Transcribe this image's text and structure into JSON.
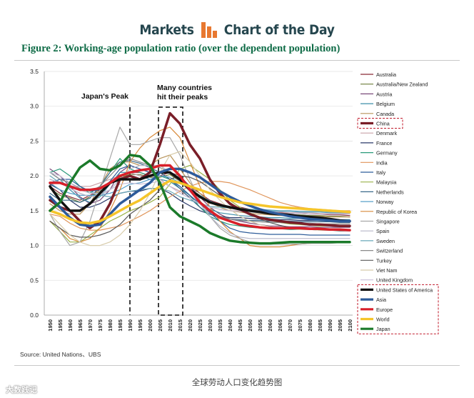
{
  "header": {
    "left_word": "Markets",
    "right_word": "Chart of the Day"
  },
  "colors": {
    "brand": "#e87830",
    "header_text": "#25464e",
    "figure_title": "#0e6b46",
    "highlight_box": "#c0182a"
  },
  "figure_title": "Figure 2:  Working-age population ratio (over the dependent population)",
  "source": "Source: United Nations、UBS",
  "caption": "全球劳动人口变化趋势图",
  "watermark": "大数践记",
  "chart_data": {
    "type": "line",
    "title": "Working-age population ratio (over the dependent population)",
    "xlabel": "",
    "ylabel": "",
    "ylim": [
      0.0,
      3.5
    ],
    "yticks": [
      "0.0",
      "0.5",
      "1.0",
      "1.5",
      "2.0",
      "2.5",
      "3.0",
      "3.5"
    ],
    "categories": [
      "1950",
      "1955",
      "1960",
      "1965",
      "1970",
      "1975",
      "1980",
      "1985",
      "1990",
      "1995",
      "2000",
      "2005",
      "2010",
      "2015",
      "2020",
      "2025",
      "2030",
      "2035",
      "2040",
      "2045",
      "2050",
      "2055",
      "2060",
      "2065",
      "2070",
      "2075",
      "2080",
      "2085",
      "2090",
      "2095",
      "2100"
    ],
    "annotations": [
      {
        "text": "Japan's Peak",
        "x": "1990"
      },
      {
        "text": "Many countries hit their peaks",
        "x_range": [
          "2005",
          "2015"
        ]
      }
    ],
    "highlight_groups": [
      [
        "China"
      ],
      [
        "United States of America",
        "Asia",
        "Europe",
        "World",
        "Japan"
      ]
    ],
    "series": [
      {
        "name": "Australia",
        "color": "#8a2a35",
        "width": 1.2,
        "values": [
          1.85,
          1.75,
          1.7,
          1.65,
          1.72,
          1.8,
          1.9,
          2.0,
          2.05,
          2.05,
          2.0,
          2.0,
          2.05,
          1.95,
          1.85,
          1.75,
          1.65,
          1.6,
          1.55,
          1.55,
          1.52,
          1.5,
          1.48,
          1.47,
          1.46,
          1.46,
          1.45,
          1.45,
          1.44,
          1.44,
          1.43
        ]
      },
      {
        "name": "Australia/New Zealand",
        "color": "#6e7d3a",
        "width": 1.2,
        "values": [
          1.82,
          1.72,
          1.68,
          1.62,
          1.7,
          1.78,
          1.88,
          1.98,
          2.02,
          2.02,
          1.98,
          1.98,
          2.02,
          1.92,
          1.82,
          1.72,
          1.63,
          1.58,
          1.53,
          1.53,
          1.5,
          1.48,
          1.46,
          1.45,
          1.44,
          1.44,
          1.43,
          1.43,
          1.42,
          1.42,
          1.41
        ]
      },
      {
        "name": "Austria",
        "color": "#7a4a7a",
        "width": 1.2,
        "values": [
          2.1,
          2.0,
          1.85,
          1.7,
          1.6,
          1.65,
          1.8,
          2.05,
          2.15,
          2.1,
          2.05,
          2.05,
          2.05,
          2.0,
          1.85,
          1.7,
          1.55,
          1.45,
          1.38,
          1.35,
          1.32,
          1.3,
          1.28,
          1.28,
          1.27,
          1.27,
          1.27,
          1.26,
          1.26,
          1.26,
          1.26
        ]
      },
      {
        "name": "Belgium",
        "color": "#3d8ea8",
        "width": 1.2,
        "values": [
          2.05,
          1.95,
          1.8,
          1.68,
          1.62,
          1.7,
          1.88,
          2.05,
          2.05,
          2.0,
          1.95,
          1.95,
          1.92,
          1.82,
          1.72,
          1.6,
          1.52,
          1.47,
          1.45,
          1.43,
          1.42,
          1.41,
          1.4,
          1.4,
          1.39,
          1.39,
          1.38,
          1.38,
          1.38,
          1.37,
          1.37
        ]
      },
      {
        "name": "Canada",
        "color": "#b8945a",
        "width": 1.2,
        "values": [
          1.6,
          1.5,
          1.45,
          1.45,
          1.6,
          1.85,
          2.1,
          2.2,
          2.2,
          2.15,
          2.15,
          2.25,
          2.3,
          2.1,
          1.9,
          1.75,
          1.62,
          1.55,
          1.5,
          1.48,
          1.46,
          1.45,
          1.44,
          1.43,
          1.43,
          1.42,
          1.42,
          1.42,
          1.41,
          1.41,
          1.41
        ]
      },
      {
        "name": "China",
        "color": "#7a1e28",
        "width": 3.5,
        "values": [
          1.65,
          1.55,
          1.5,
          1.35,
          1.25,
          1.35,
          1.6,
          1.95,
          2.0,
          1.95,
          2.05,
          2.45,
          2.9,
          2.75,
          2.45,
          2.25,
          1.95,
          1.75,
          1.6,
          1.52,
          1.45,
          1.4,
          1.37,
          1.35,
          1.33,
          1.32,
          1.3,
          1.3,
          1.29,
          1.28,
          1.28
        ]
      },
      {
        "name": "Denmark",
        "color": "#c9a2a8",
        "width": 1.2,
        "values": [
          1.95,
          1.9,
          1.85,
          1.85,
          1.85,
          1.9,
          1.95,
          2.0,
          2.05,
          2.0,
          2.0,
          1.95,
          1.85,
          1.78,
          1.7,
          1.62,
          1.55,
          1.52,
          1.5,
          1.5,
          1.5,
          1.49,
          1.48,
          1.48,
          1.47,
          1.47,
          1.47,
          1.46,
          1.46,
          1.46,
          1.46
        ]
      },
      {
        "name": "France",
        "color": "#2a3a6a",
        "width": 1.2,
        "values": [
          1.88,
          1.8,
          1.65,
          1.55,
          1.55,
          1.6,
          1.68,
          1.75,
          1.78,
          1.78,
          1.82,
          1.82,
          1.75,
          1.65,
          1.57,
          1.5,
          1.45,
          1.42,
          1.4,
          1.4,
          1.39,
          1.38,
          1.38,
          1.37,
          1.37,
          1.36,
          1.36,
          1.36,
          1.35,
          1.35,
          1.35
        ]
      },
      {
        "name": "Germany",
        "color": "#2a9a7a",
        "width": 1.2,
        "values": [
          2.05,
          2.1,
          2.0,
          1.85,
          1.75,
          1.85,
          2.05,
          2.25,
          2.1,
          2.05,
          2.0,
          2.0,
          1.95,
          1.85,
          1.72,
          1.55,
          1.42,
          1.35,
          1.3,
          1.28,
          1.26,
          1.25,
          1.24,
          1.24,
          1.23,
          1.23,
          1.23,
          1.23,
          1.22,
          1.22,
          1.22
        ]
      },
      {
        "name": "India",
        "color": "#e0955a",
        "width": 1.2,
        "values": [
          1.45,
          1.42,
          1.32,
          1.25,
          1.22,
          1.22,
          1.25,
          1.28,
          1.35,
          1.42,
          1.5,
          1.6,
          1.7,
          1.78,
          1.85,
          1.9,
          1.92,
          1.92,
          1.9,
          1.85,
          1.8,
          1.74,
          1.68,
          1.62,
          1.58,
          1.55,
          1.53,
          1.52,
          1.51,
          1.5,
          1.5
        ]
      },
      {
        "name": "Italy",
        "color": "#2f5d9a",
        "width": 1.2,
        "values": [
          1.9,
          1.95,
          1.95,
          1.85,
          1.78,
          1.8,
          1.92,
          2.1,
          2.15,
          2.1,
          2.05,
          2.05,
          1.95,
          1.85,
          1.72,
          1.6,
          1.47,
          1.35,
          1.25,
          1.2,
          1.18,
          1.17,
          1.16,
          1.16,
          1.16,
          1.16,
          1.15,
          1.15,
          1.15,
          1.15,
          1.15
        ]
      },
      {
        "name": "Malaysia",
        "color": "#9ab34a",
        "width": 1.2,
        "values": [
          1.35,
          1.2,
          1.05,
          1.05,
          1.15,
          1.25,
          1.35,
          1.42,
          1.5,
          1.55,
          1.62,
          1.7,
          1.88,
          2.1,
          2.15,
          2.05,
          1.95,
          1.8,
          1.65,
          1.55,
          1.47,
          1.4,
          1.36,
          1.33,
          1.31,
          1.3,
          1.29,
          1.28,
          1.28,
          1.27,
          1.27
        ]
      },
      {
        "name": "Netherlands",
        "color": "#3a6a8a",
        "width": 1.2,
        "values": [
          1.75,
          1.65,
          1.65,
          1.62,
          1.68,
          1.85,
          2.05,
          2.2,
          2.22,
          2.18,
          2.12,
          2.05,
          1.95,
          1.82,
          1.68,
          1.55,
          1.45,
          1.4,
          1.38,
          1.37,
          1.36,
          1.36,
          1.35,
          1.35,
          1.35,
          1.34,
          1.34,
          1.34,
          1.34,
          1.33,
          1.33
        ]
      },
      {
        "name": "Norway",
        "color": "#5aa0c8",
        "width": 1.2,
        "values": [
          1.9,
          1.8,
          1.75,
          1.72,
          1.72,
          1.72,
          1.75,
          1.8,
          1.88,
          1.9,
          1.95,
          2.0,
          1.98,
          1.9,
          1.8,
          1.72,
          1.64,
          1.58,
          1.55,
          1.53,
          1.52,
          1.51,
          1.5,
          1.49,
          1.49,
          1.48,
          1.48,
          1.48,
          1.47,
          1.47,
          1.47
        ]
      },
      {
        "name": "Republic of Korea",
        "color": "#d88a3a",
        "width": 1.2,
        "values": [
          1.35,
          1.25,
          1.1,
          1.05,
          1.1,
          1.25,
          1.5,
          1.8,
          2.2,
          2.4,
          2.55,
          2.65,
          2.7,
          2.55,
          2.2,
          1.85,
          1.55,
          1.35,
          1.2,
          1.1,
          1.0,
          0.98,
          0.98,
          0.98,
          1.0,
          1.02,
          1.03,
          1.04,
          1.05,
          1.05,
          1.06
        ]
      },
      {
        "name": "Singapore",
        "color": "#a8a8a8",
        "width": 1.2,
        "values": [
          1.45,
          1.2,
          1.0,
          1.05,
          1.35,
          1.8,
          2.25,
          2.7,
          2.45,
          2.45,
          2.5,
          2.55,
          2.55,
          2.3,
          1.95,
          1.65,
          1.42,
          1.25,
          1.15,
          1.1,
          1.05,
          1.03,
          1.02,
          1.02,
          1.02,
          1.02,
          1.03,
          1.03,
          1.03,
          1.04,
          1.04
        ]
      },
      {
        "name": "Spain",
        "color": "#b7b7c8",
        "width": 1.2,
        "values": [
          1.95,
          1.9,
          1.82,
          1.75,
          1.7,
          1.72,
          1.8,
          1.95,
          2.1,
          2.15,
          2.15,
          2.15,
          2.05,
          1.92,
          1.78,
          1.6,
          1.42,
          1.28,
          1.18,
          1.12,
          1.1,
          1.1,
          1.1,
          1.1,
          1.1,
          1.1,
          1.1,
          1.1,
          1.1,
          1.1,
          1.1
        ]
      },
      {
        "name": "Sweden",
        "color": "#6aa8b8",
        "width": 1.2,
        "values": [
          2.0,
          1.9,
          1.85,
          1.82,
          1.78,
          1.72,
          1.7,
          1.75,
          1.78,
          1.8,
          1.82,
          1.82,
          1.78,
          1.7,
          1.65,
          1.6,
          1.56,
          1.55,
          1.54,
          1.53,
          1.52,
          1.52,
          1.51,
          1.5,
          1.5,
          1.49,
          1.49,
          1.49,
          1.48,
          1.48,
          1.48
        ]
      },
      {
        "name": "Switzerland",
        "color": "#8a8a8a",
        "width": 1.2,
        "values": [
          2.05,
          1.95,
          1.9,
          1.82,
          1.78,
          1.85,
          2.0,
          2.15,
          2.25,
          2.2,
          2.15,
          2.12,
          2.05,
          1.92,
          1.78,
          1.62,
          1.5,
          1.42,
          1.38,
          1.36,
          1.35,
          1.34,
          1.33,
          1.33,
          1.32,
          1.32,
          1.32,
          1.31,
          1.31,
          1.31,
          1.31
        ]
      },
      {
        "name": "Turkey",
        "color": "#5a5a5a",
        "width": 1.2,
        "values": [
          1.35,
          1.25,
          1.15,
          1.12,
          1.12,
          1.15,
          1.2,
          1.3,
          1.45,
          1.55,
          1.65,
          1.8,
          1.95,
          2.0,
          1.98,
          1.92,
          1.82,
          1.72,
          1.62,
          1.52,
          1.45,
          1.38,
          1.33,
          1.29,
          1.26,
          1.24,
          1.23,
          1.22,
          1.22,
          1.21,
          1.21
        ]
      },
      {
        "name": "Viet Nam",
        "color": "#d8ccaa",
        "width": 1.2,
        "values": [
          1.45,
          1.3,
          1.15,
          1.05,
          1.0,
          1.0,
          1.05,
          1.15,
          1.3,
          1.5,
          1.75,
          2.05,
          2.3,
          2.35,
          2.2,
          2.0,
          1.8,
          1.65,
          1.52,
          1.42,
          1.35,
          1.3,
          1.27,
          1.25,
          1.24,
          1.23,
          1.23,
          1.22,
          1.22,
          1.22,
          1.22
        ]
      },
      {
        "name": "United Kingdom",
        "color": "#c8c0d8",
        "width": 1.2,
        "values": [
          2.05,
          2.0,
          1.9,
          1.8,
          1.75,
          1.75,
          1.8,
          1.88,
          1.9,
          1.88,
          1.9,
          1.92,
          1.85,
          1.75,
          1.68,
          1.6,
          1.55,
          1.52,
          1.5,
          1.49,
          1.48,
          1.47,
          1.47,
          1.46,
          1.46,
          1.46,
          1.45,
          1.45,
          1.45,
          1.45,
          1.45
        ]
      },
      {
        "name": "United States of America",
        "color": "#111111",
        "width": 3.5,
        "values": [
          1.85,
          1.65,
          1.5,
          1.5,
          1.6,
          1.75,
          1.9,
          1.95,
          1.95,
          1.95,
          2.0,
          2.05,
          2.05,
          1.95,
          1.8,
          1.7,
          1.62,
          1.58,
          1.55,
          1.52,
          1.5,
          1.48,
          1.46,
          1.45,
          1.44,
          1.42,
          1.41,
          1.4,
          1.38,
          1.36,
          1.35
        ]
      },
      {
        "name": "Asia",
        "color": "#2d5b9a",
        "width": 3.5,
        "values": [
          1.7,
          1.55,
          1.4,
          1.3,
          1.28,
          1.3,
          1.45,
          1.6,
          1.7,
          1.8,
          1.9,
          2.05,
          2.1,
          2.1,
          2.05,
          1.98,
          1.88,
          1.78,
          1.7,
          1.63,
          1.57,
          1.52,
          1.48,
          1.45,
          1.42,
          1.4,
          1.38,
          1.37,
          1.36,
          1.35,
          1.35
        ]
      },
      {
        "name": "Europe",
        "color": "#d8202a",
        "width": 3.5,
        "values": [
          1.9,
          1.9,
          1.85,
          1.8,
          1.8,
          1.82,
          1.9,
          2.0,
          2.05,
          2.08,
          2.1,
          2.15,
          2.15,
          2.0,
          1.8,
          1.62,
          1.5,
          1.4,
          1.35,
          1.3,
          1.28,
          1.26,
          1.25,
          1.25,
          1.25,
          1.25,
          1.24,
          1.24,
          1.23,
          1.23,
          1.22
        ]
      },
      {
        "name": "World",
        "color": "#f5c52a",
        "width": 3.5,
        "values": [
          1.5,
          1.45,
          1.38,
          1.33,
          1.32,
          1.35,
          1.42,
          1.5,
          1.58,
          1.65,
          1.75,
          1.85,
          1.93,
          1.9,
          1.85,
          1.8,
          1.75,
          1.7,
          1.66,
          1.62,
          1.6,
          1.58,
          1.56,
          1.55,
          1.54,
          1.53,
          1.52,
          1.51,
          1.5,
          1.49,
          1.48
        ]
      },
      {
        "name": "Japan",
        "color": "#1b7a2a",
        "width": 3.5,
        "values": [
          1.5,
          1.62,
          1.9,
          2.12,
          2.22,
          2.1,
          2.08,
          2.15,
          2.3,
          2.28,
          2.15,
          1.9,
          1.55,
          1.42,
          1.35,
          1.28,
          1.18,
          1.12,
          1.07,
          1.05,
          1.04,
          1.03,
          1.03,
          1.04,
          1.05,
          1.05,
          1.05,
          1.05,
          1.05,
          1.05,
          1.05
        ]
      }
    ]
  }
}
